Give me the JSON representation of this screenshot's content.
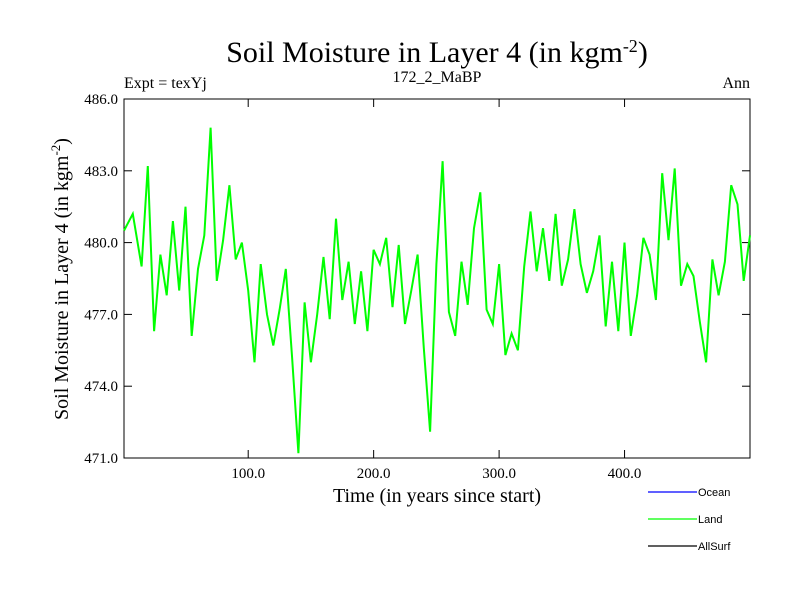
{
  "chart_data": {
    "type": "line",
    "title_main": "Soil Moisture in Layer 4 (in kgm",
    "title_sup": "-2",
    "title_close": ")",
    "subtitle_left": "Expt = texYj",
    "subtitle_center": "172_2_MaBP",
    "subtitle_right": "Ann",
    "xlabel": "Time (in years since start)",
    "ylabel_main": "Soil Moisture in Layer 4 (in kgm",
    "ylabel_sup": "-2",
    "ylabel_close": ")",
    "xlim": [
      1,
      500
    ],
    "ylim": [
      471.0,
      486.0
    ],
    "xticks": [
      100,
      200,
      300,
      400
    ],
    "xtick_labels": [
      "100.0",
      "200.0",
      "300.0",
      "400.0"
    ],
    "yticks": [
      471,
      474,
      477,
      480,
      483,
      486
    ],
    "ytick_labels": [
      "471.0",
      "474.0",
      "477.0",
      "480.0",
      "483.0",
      "486.0"
    ],
    "legend": [
      {
        "name": "Ocean",
        "color": "#0000ff"
      },
      {
        "name": "Land",
        "color": "#00ff00"
      },
      {
        "name": "AllSurf",
        "color": "#000000"
      }
    ],
    "series": [
      {
        "name": "Land",
        "color": "#00ff00",
        "x": [
          1,
          8,
          15,
          20,
          25,
          30,
          35,
          40,
          45,
          50,
          55,
          60,
          65,
          70,
          75,
          80,
          85,
          90,
          95,
          100,
          105,
          110,
          115,
          120,
          125,
          130,
          135,
          140,
          145,
          150,
          155,
          160,
          165,
          170,
          175,
          180,
          185,
          190,
          195,
          200,
          205,
          210,
          215,
          220,
          225,
          230,
          235,
          240,
          245,
          250,
          255,
          260,
          265,
          270,
          275,
          280,
          285,
          290,
          295,
          300,
          305,
          310,
          315,
          320,
          325,
          330,
          335,
          340,
          345,
          350,
          355,
          360,
          365,
          370,
          375,
          380,
          385,
          390,
          395,
          400,
          405,
          410,
          415,
          420,
          425,
          430,
          435,
          440,
          445,
          450,
          455,
          460,
          465,
          470,
          475,
          480,
          485,
          490,
          495,
          500
        ],
        "values": [
          480.5,
          481.2,
          479.0,
          483.2,
          476.3,
          479.5,
          477.8,
          480.9,
          478.0,
          481.5,
          476.1,
          478.9,
          480.3,
          484.8,
          478.4,
          480.1,
          482.4,
          479.3,
          480.0,
          478.0,
          475.0,
          479.1,
          477.0,
          475.7,
          477.2,
          478.9,
          475.2,
          471.2,
          477.5,
          475.0,
          477.0,
          479.4,
          476.8,
          481.0,
          477.6,
          479.2,
          476.6,
          478.8,
          476.3,
          479.7,
          479.1,
          480.2,
          477.3,
          479.9,
          476.6,
          478.0,
          479.5,
          475.6,
          472.1,
          479.1,
          483.4,
          477.1,
          476.1,
          479.2,
          477.4,
          480.6,
          482.1,
          477.2,
          476.6,
          479.1,
          475.3,
          476.2,
          475.5,
          479.0,
          481.3,
          478.8,
          480.6,
          478.4,
          481.2,
          478.2,
          479.3,
          481.4,
          479.1,
          477.9,
          478.8,
          480.3,
          476.5,
          479.2,
          476.3,
          480.0,
          476.1,
          477.8,
          480.2,
          479.5,
          477.6,
          482.9,
          480.1,
          483.1,
          478.2,
          479.1,
          478.6,
          476.7,
          475.0,
          479.3,
          477.8,
          479.2,
          482.4,
          481.6,
          478.4,
          480.3
        ]
      }
    ]
  }
}
